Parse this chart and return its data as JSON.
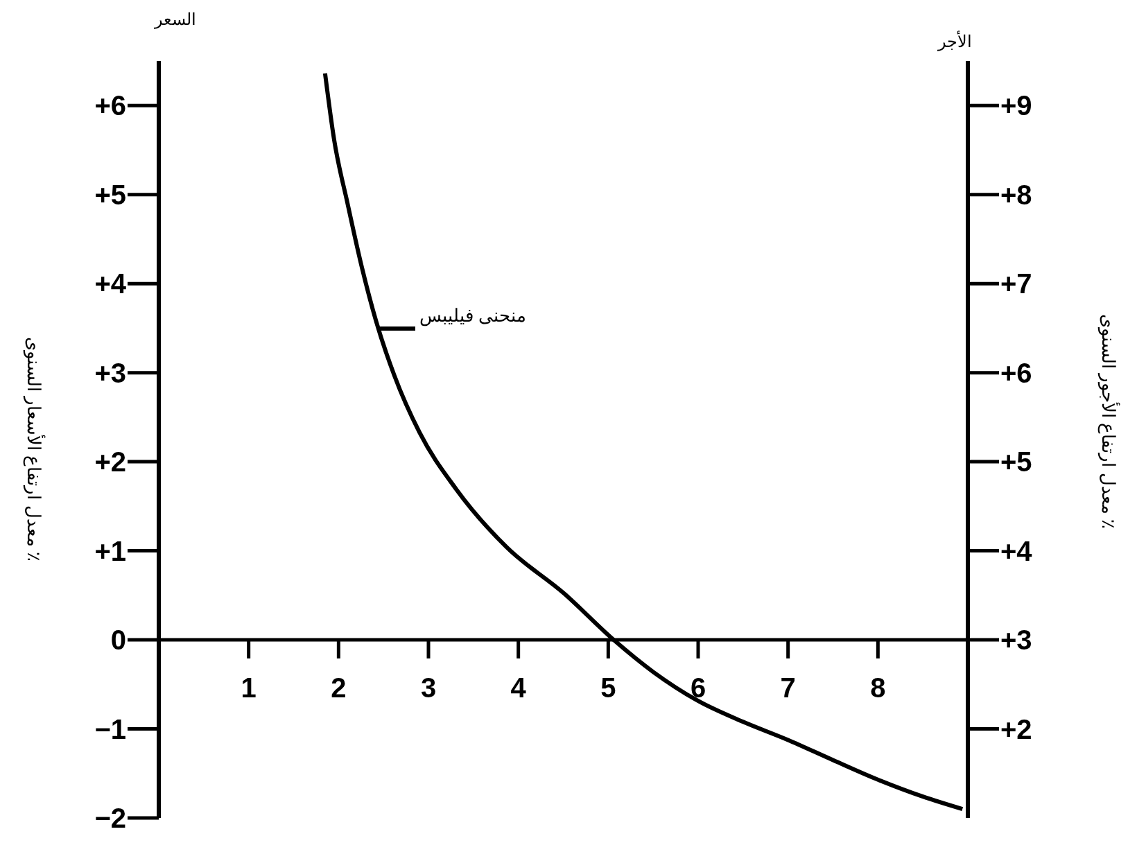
{
  "chart_data": {
    "type": "line",
    "xlim": [
      0,
      9
    ],
    "xticks": [
      1,
      2,
      3,
      4,
      5,
      6,
      7,
      8
    ],
    "ylim": [
      -2,
      6.5
    ],
    "yticks": [
      {
        "value": -2,
        "label": "−2"
      },
      {
        "value": -1,
        "label": "−1"
      },
      0,
      {
        "value": 1,
        "label": "+1"
      },
      {
        "value": 2,
        "label": "+2"
      },
      {
        "value": 3,
        "label": "+3"
      },
      {
        "value": 4,
        "label": "+4"
      },
      {
        "value": 5,
        "label": "+5"
      },
      {
        "value": 6,
        "label": "+6"
      }
    ],
    "y2lim": [
      1,
      9.5
    ],
    "y2ticks": [
      {
        "value": 2,
        "label": "+2"
      },
      {
        "value": 3,
        "label": "+3"
      },
      {
        "value": 4,
        "label": "+4"
      },
      {
        "value": 5,
        "label": "+5"
      },
      {
        "value": 6,
        "label": "+6"
      },
      {
        "value": 7,
        "label": "+7"
      },
      {
        "value": 8,
        "label": "+8"
      },
      {
        "value": 9,
        "label": "+9"
      }
    ],
    "ylabel": "معدل ارتفاع الأسعار السنوى ٪",
    "y2label": "معدل ارتفاع الأجور السنوى ٪",
    "annotations": [
      "السعر",
      "الأجر",
      {
        "text": "منحنى فيليبس",
        "x": 2.45,
        "y": 3.5
      }
    ],
    "grid": false,
    "legend": false,
    "marker": "none",
    "line_style": "solid",
    "series": [
      {
        "color": "#000000",
        "x": [
          1.85,
          1.95,
          2.1,
          2.26,
          2.42,
          2.62,
          2.9,
          3.31,
          3.87,
          4.51,
          5.06,
          5.5,
          5.99,
          6.5,
          6.99,
          7.5,
          8.0,
          8.5,
          8.94
        ],
        "values": [
          6.36,
          5.62,
          4.9,
          4.18,
          3.57,
          2.97,
          2.33,
          1.69,
          1.04,
          0.52,
          0,
          -0.36,
          -0.68,
          -0.92,
          -1.12,
          -1.35,
          -1.57,
          -1.76,
          -1.9
        ]
      }
    ]
  }
}
